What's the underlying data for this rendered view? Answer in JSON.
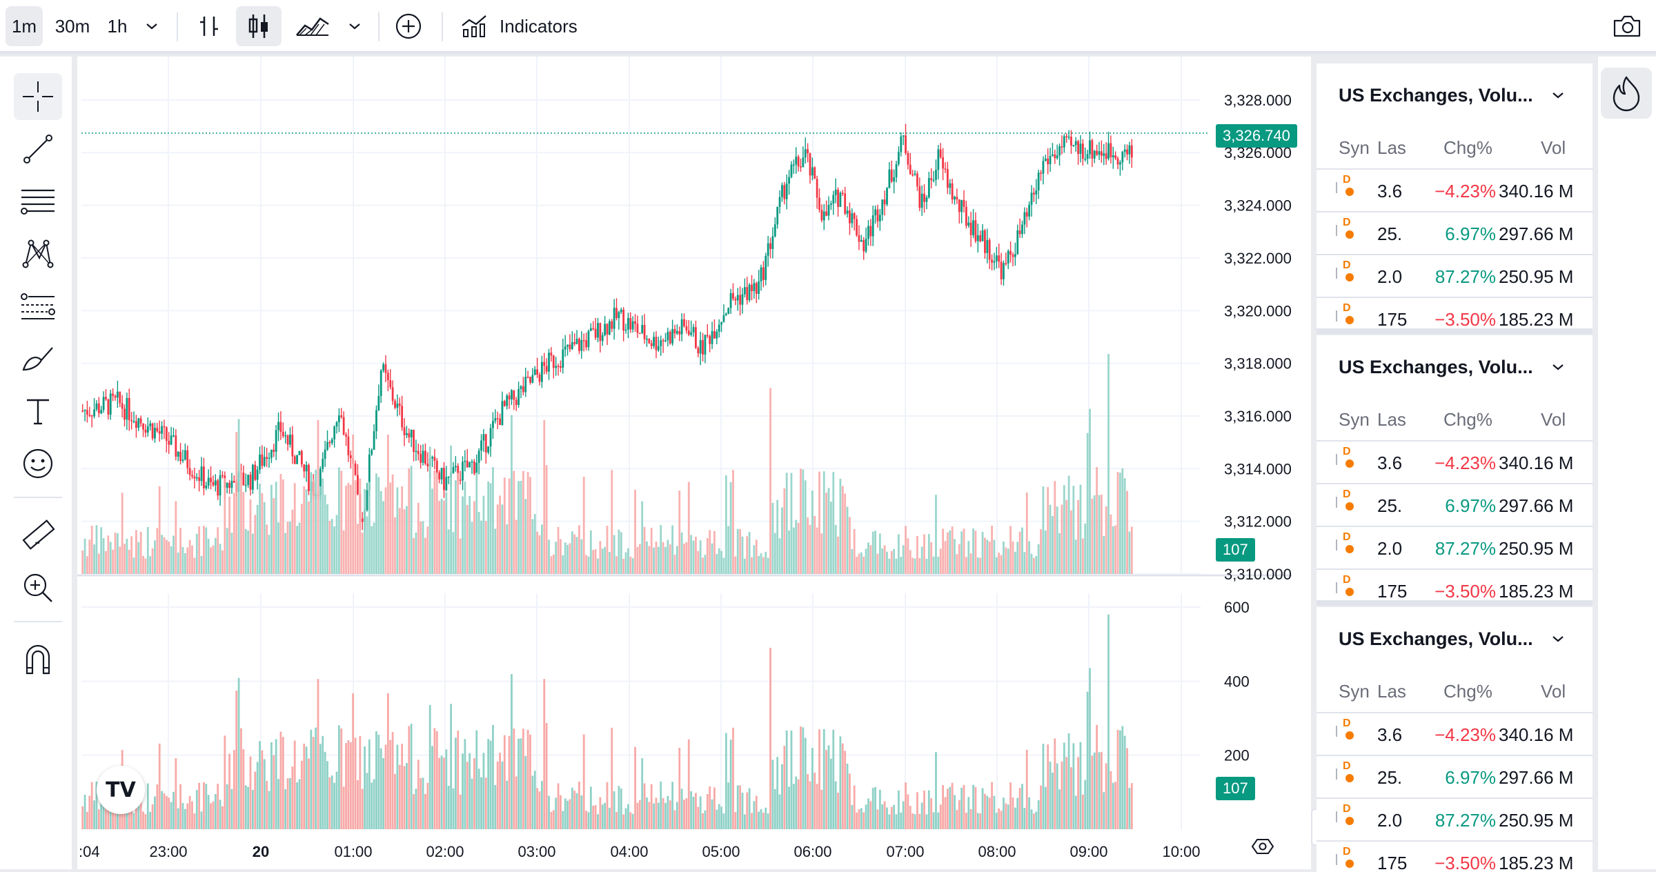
{
  "toolbar": {
    "intervals": [
      "1m",
      "30m",
      "1h"
    ],
    "indicators_label": "Indicators"
  },
  "chart": {
    "last_price_label": "3,326.740",
    "volume_label_top": "107",
    "volume_label_bottom": "107",
    "logo": "TV"
  },
  "chart_data": {
    "type": "candlestick",
    "price_axis": [
      "3,328.000",
      "3,326.000",
      "3,324.000",
      "3,322.000",
      "3,320.000",
      "3,318.000",
      "3,316.000",
      "3,314.000",
      "3,312.000",
      "3,310.000"
    ],
    "price_ylim": [
      3310,
      3328.6
    ],
    "volume_axis": [
      "600",
      "400",
      "200"
    ],
    "volume_ylim": [
      0,
      600
    ],
    "time_axis": [
      ":04",
      "23:00",
      "20",
      "01:00",
      "02:00",
      "03:00",
      "04:00",
      "05:00",
      "06:00",
      "07:00",
      "08:00",
      "09:00",
      "10:00"
    ],
    "last_price": 3326.74,
    "last_volume": 107,
    "path_points": [
      [
        0,
        3316.2
      ],
      [
        15,
        3316.5
      ],
      [
        35,
        3315.2
      ],
      [
        55,
        3313.3
      ],
      [
        72,
        3313.6
      ],
      [
        85,
        3315.5
      ],
      [
        100,
        3313.1
      ],
      [
        110,
        3316.4
      ],
      [
        120,
        3312.0
      ],
      [
        128,
        3317.8
      ],
      [
        140,
        3315.2
      ],
      [
        155,
        3313.5
      ],
      [
        168,
        3314.2
      ],
      [
        180,
        3316.2
      ],
      [
        200,
        3318.0
      ],
      [
        218,
        3319.0
      ],
      [
        230,
        3319.8
      ],
      [
        245,
        3318.8
      ],
      [
        260,
        3319.4
      ],
      [
        265,
        3318.5
      ],
      [
        278,
        3320.4
      ],
      [
        290,
        3320.9
      ],
      [
        302,
        3325.0
      ],
      [
        310,
        3325.9
      ],
      [
        318,
        3323.5
      ],
      [
        325,
        3324.5
      ],
      [
        335,
        3322.5
      ],
      [
        345,
        3324.7
      ],
      [
        352,
        3326.5
      ],
      [
        360,
        3324.0
      ],
      [
        367,
        3325.8
      ],
      [
        375,
        3324.0
      ],
      [
        385,
        3322.8
      ],
      [
        395,
        3321.5
      ],
      [
        405,
        3323.5
      ],
      [
        412,
        3325.6
      ],
      [
        420,
        3326.2
      ],
      [
        435,
        3326.1
      ],
      [
        450,
        3325.9
      ]
    ]
  },
  "watchlist": {
    "panels": [
      {
        "title": "US Exchanges, Volu...",
        "columns": [
          "Syn",
          "Las",
          "Chg%",
          "Vol"
        ],
        "rows": [
          {
            "badge": "D",
            "last": "3.6",
            "chg": "−4.23%",
            "vol": "340.16 M"
          },
          {
            "badge": "D",
            "last": "25.",
            "chg": "6.97%",
            "vol": "297.66 M"
          },
          {
            "badge": "D",
            "last": "2.0",
            "chg": "87.27%",
            "vol": "250.95 M"
          },
          {
            "badge": "D",
            "last": "175",
            "chg": "−3.50%",
            "vol": "185.23 M"
          }
        ]
      },
      {
        "title": "US Exchanges, Volu...",
        "columns": [
          "Syn",
          "Las",
          "Chg%",
          "Vol"
        ],
        "rows": [
          {
            "badge": "D",
            "last": "3.6",
            "chg": "−4.23%",
            "vol": "340.16 M"
          },
          {
            "badge": "D",
            "last": "25.",
            "chg": "6.97%",
            "vol": "297.66 M"
          },
          {
            "badge": "D",
            "last": "2.0",
            "chg": "87.27%",
            "vol": "250.95 M"
          },
          {
            "badge": "D",
            "last": "175",
            "chg": "−3.50%",
            "vol": "185.23 M"
          }
        ]
      },
      {
        "title": "US Exchanges, Volu...",
        "columns": [
          "Syn",
          "Las",
          "Chg%",
          "Vol"
        ],
        "rows": [
          {
            "badge": "D",
            "last": "3.6",
            "chg": "−4.23%",
            "vol": "340.16 M"
          },
          {
            "badge": "D",
            "last": "25.",
            "chg": "6.97%",
            "vol": "297.66 M"
          },
          {
            "badge": "D",
            "last": "2.0",
            "chg": "87.27%",
            "vol": "250.95 M"
          },
          {
            "badge": "D",
            "last": "175",
            "chg": "−3.50%",
            "vol": "185.23 M"
          }
        ]
      }
    ]
  },
  "colors": {
    "up": "#089981",
    "down": "#f23645",
    "vol_up": "#8fd1c7",
    "vol_down": "#f7a9a7",
    "grid": "#f0f3fa"
  }
}
